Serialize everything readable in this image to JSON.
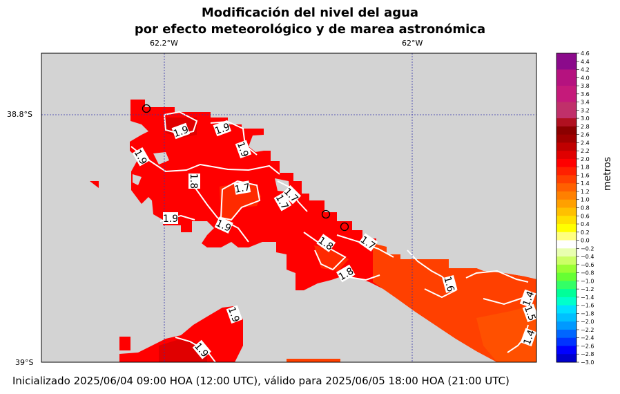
{
  "title": {
    "line1": "Modificación del nivel del agua",
    "line2": "por efecto meteorológico y de marea astronómica"
  },
  "axes": {
    "lon_labels": [
      "62.2°W",
      "62°W"
    ],
    "lat_labels": [
      "38.8°S",
      "39°S"
    ]
  },
  "contour_labels": [
    "1.9",
    "1.9",
    "1.9",
    "1.9",
    "1.8",
    "1.7",
    "1.7",
    "1.7",
    "1.9",
    "1.9",
    "1.8",
    "1.8",
    "1.7",
    "1.6",
    "1.4",
    "1.5",
    "1.4",
    "1.9",
    "1.9"
  ],
  "colorbar": {
    "title": "metros",
    "min": -3.0,
    "max": 4.6,
    "ticks": [
      "4.6",
      "4.4",
      "4.2",
      "4.0",
      "3.8",
      "3.6",
      "3.4",
      "3.2",
      "3.0",
      "2.8",
      "2.6",
      "2.4",
      "2.2",
      "2.0",
      "1.8",
      "1.6",
      "1.4",
      "1.2",
      "1.0",
      "0.8",
      "0.6",
      "0.4",
      "0.2",
      "0.0",
      "−0.2",
      "−0.4",
      "−0.6",
      "−0.8",
      "−1.0",
      "−1.2",
      "−1.4",
      "−1.6",
      "−1.8",
      "−2.0",
      "−2.2",
      "−2.4",
      "−2.6",
      "−2.8",
      "−3.0"
    ]
  },
  "colors": {
    "land": "#d3d3d3",
    "water_high": "#ff0000",
    "water_1_8": "#ff1a00",
    "water_1_6": "#ff4000",
    "contour": "#ffffff"
  },
  "footer": "Inicializado 2025/06/04 09:00 HOA (12:00 UTC), válido para 2025/06/05 18:00 HOA (21:00 UTC)"
}
